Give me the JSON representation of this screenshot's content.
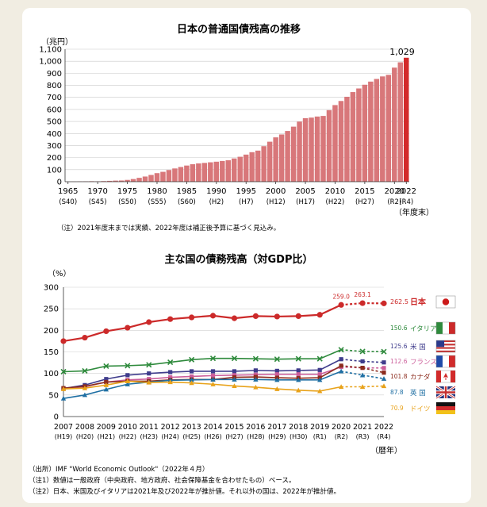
{
  "chart_data": [
    {
      "type": "bar",
      "title": "日本の普通国債残高の推移",
      "ylabel": "（兆円）",
      "xlabel": "（年度末）",
      "ylim": [
        0,
        1100
      ],
      "yticks": [
        "0",
        "100",
        "200",
        "300",
        "400",
        "500",
        "600",
        "700",
        "800",
        "900",
        "1,000",
        "1,100"
      ],
      "tick_years": [
        "1965",
        "1970",
        "1975",
        "1980",
        "1985",
        "1990",
        "1995",
        "2000",
        "2005",
        "2010",
        "2015",
        "2020",
        "2022"
      ],
      "tick_eras": [
        "(S40)",
        "(S45)",
        "(S50)",
        "(S55)",
        "(S60)",
        "(H2)",
        "(H7)",
        "(H12)",
        "(H17)",
        "(H22)",
        "(H27)",
        "(R2)",
        "(R4)"
      ],
      "categories": [
        "1965",
        "1966",
        "1967",
        "1968",
        "1969",
        "1970",
        "1971",
        "1972",
        "1973",
        "1974",
        "1975",
        "1976",
        "1977",
        "1978",
        "1979",
        "1980",
        "1981",
        "1982",
        "1983",
        "1984",
        "1985",
        "1986",
        "1987",
        "1988",
        "1989",
        "1990",
        "1991",
        "1992",
        "1993",
        "1994",
        "1995",
        "1996",
        "1997",
        "1998",
        "1999",
        "2000",
        "2001",
        "2002",
        "2003",
        "2004",
        "2005",
        "2006",
        "2007",
        "2008",
        "2009",
        "2010",
        "2011",
        "2012",
        "2013",
        "2014",
        "2015",
        "2016",
        "2017",
        "2018",
        "2019",
        "2020",
        "2021",
        "2022"
      ],
      "values": [
        0.2,
        1,
        2,
        3,
        4,
        3,
        5,
        7,
        9,
        10,
        15,
        22,
        32,
        43,
        56,
        71,
        82,
        97,
        110,
        122,
        134,
        145,
        152,
        156,
        161,
        166,
        172,
        178,
        193,
        207,
        225,
        245,
        258,
        295,
        332,
        368,
        392,
        421,
        457,
        499,
        527,
        532,
        541,
        546,
        594,
        636,
        670,
        705,
        744,
        774,
        805,
        831,
        853,
        874,
        887,
        947,
        991,
        1029
      ],
      "value_label": "1,029",
      "note": "（注）2021年度末までは実績、2022年度は補正後予算に基づく見込み。"
    },
    {
      "type": "line",
      "title": "主な国の債務残高（対GDP比）",
      "ylabel": "（%）",
      "xlabel": "（暦年）",
      "ylim": [
        0,
        300
      ],
      "yticks": [
        "0",
        "50",
        "100",
        "150",
        "200",
        "250",
        "300"
      ],
      "x": [
        "2007",
        "2008",
        "2009",
        "2010",
        "2011",
        "2012",
        "2013",
        "2014",
        "2015",
        "2016",
        "2017",
        "2018",
        "2019",
        "2020",
        "2021",
        "2022"
      ],
      "x_eras": [
        "(H19)",
        "(H20)",
        "(H21)",
        "(H22)",
        "(H23)",
        "(H24)",
        "(H25)",
        "(H26)",
        "(H27)",
        "(H28)",
        "(H29)",
        "(H30)",
        "(R1)",
        "(R2)",
        "(R3)",
        "(R4)"
      ],
      "estimate_from": "2020",
      "series": [
        {
          "name": "日本",
          "color": "#cc2a2a",
          "end_label": "262.5",
          "values": [
            175,
            183,
            198,
            206,
            219,
            226,
            230,
            234,
            228,
            233,
            232,
            233,
            236,
            259.0,
            263.1,
            262.5
          ],
          "annotations": [
            {
              "x": "2020",
              "text": "259.0"
            },
            {
              "x": "2021",
              "text": "263.1"
            }
          ]
        },
        {
          "name": "イタリア",
          "color": "#2e8a3c",
          "end_label": "150.6",
          "values": [
            104,
            106,
            117,
            118,
            120,
            126,
            132,
            135,
            135,
            134,
            133,
            134,
            134,
            155,
            151,
            150.6
          ]
        },
        {
          "name": "米 国",
          "color": "#3f3c8c",
          "end_label": "125.6",
          "values": [
            65,
            73,
            87,
            96,
            100,
            103,
            105,
            105,
            105,
            107,
            106,
            107,
            108,
            133,
            128,
            125.6
          ]
        },
        {
          "name": "フランス",
          "color": "#cc5e9a",
          "end_label": "112.6",
          "values": [
            65,
            69,
            80,
            85,
            87,
            91,
            93,
            95,
            96,
            97,
            98,
            98,
            98,
            115,
            113,
            112.6
          ]
        },
        {
          "name": "カナダ",
          "color": "#8c2c1e",
          "end_label": "101.8",
          "values": [
            66,
            70,
            80,
            82,
            82,
            85,
            86,
            86,
            91,
            92,
            90,
            89,
            90,
            118,
            113,
            101.8
          ]
        },
        {
          "name": "英 国",
          "color": "#1f6fa3",
          "end_label": "87.8",
          "values": [
            42,
            50,
            63,
            75,
            80,
            84,
            85,
            86,
            86,
            86,
            85,
            85,
            85,
            105,
            96,
            87.8
          ]
        },
        {
          "name": "ドイツ",
          "color": "#e8a21a",
          "end_label": "70.9",
          "values": [
            64,
            66,
            73,
            82,
            79,
            80,
            78,
            75,
            71,
            68,
            64,
            61,
            59,
            69,
            69,
            70.9
          ]
        }
      ],
      "notes": [
        "（出所）IMF \"World Economic Outlook\"（2022年４月）",
        "（注1）数値は一般政府（中央政府、地方政府、社会保障基金を合わせたもの）ベース。",
        "（注2）日本、米国及びイタリアは2021年及び2022年が推計値。それ以外の国は、2022年が推計値。"
      ]
    }
  ]
}
